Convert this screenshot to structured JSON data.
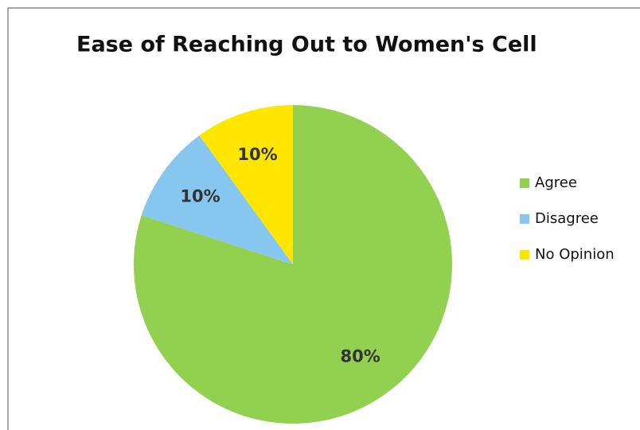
{
  "chart_data": {
    "type": "pie",
    "title": "Ease of Reaching Out to Women's Cell",
    "categories": [
      "Agree",
      "Disagree",
      "No Opinion"
    ],
    "values": [
      80,
      10,
      10
    ],
    "value_labels": [
      "80%",
      "10%",
      "10%"
    ],
    "colors": [
      "#92d050",
      "#86c6ef",
      "#ffe600"
    ],
    "legend": "right"
  }
}
